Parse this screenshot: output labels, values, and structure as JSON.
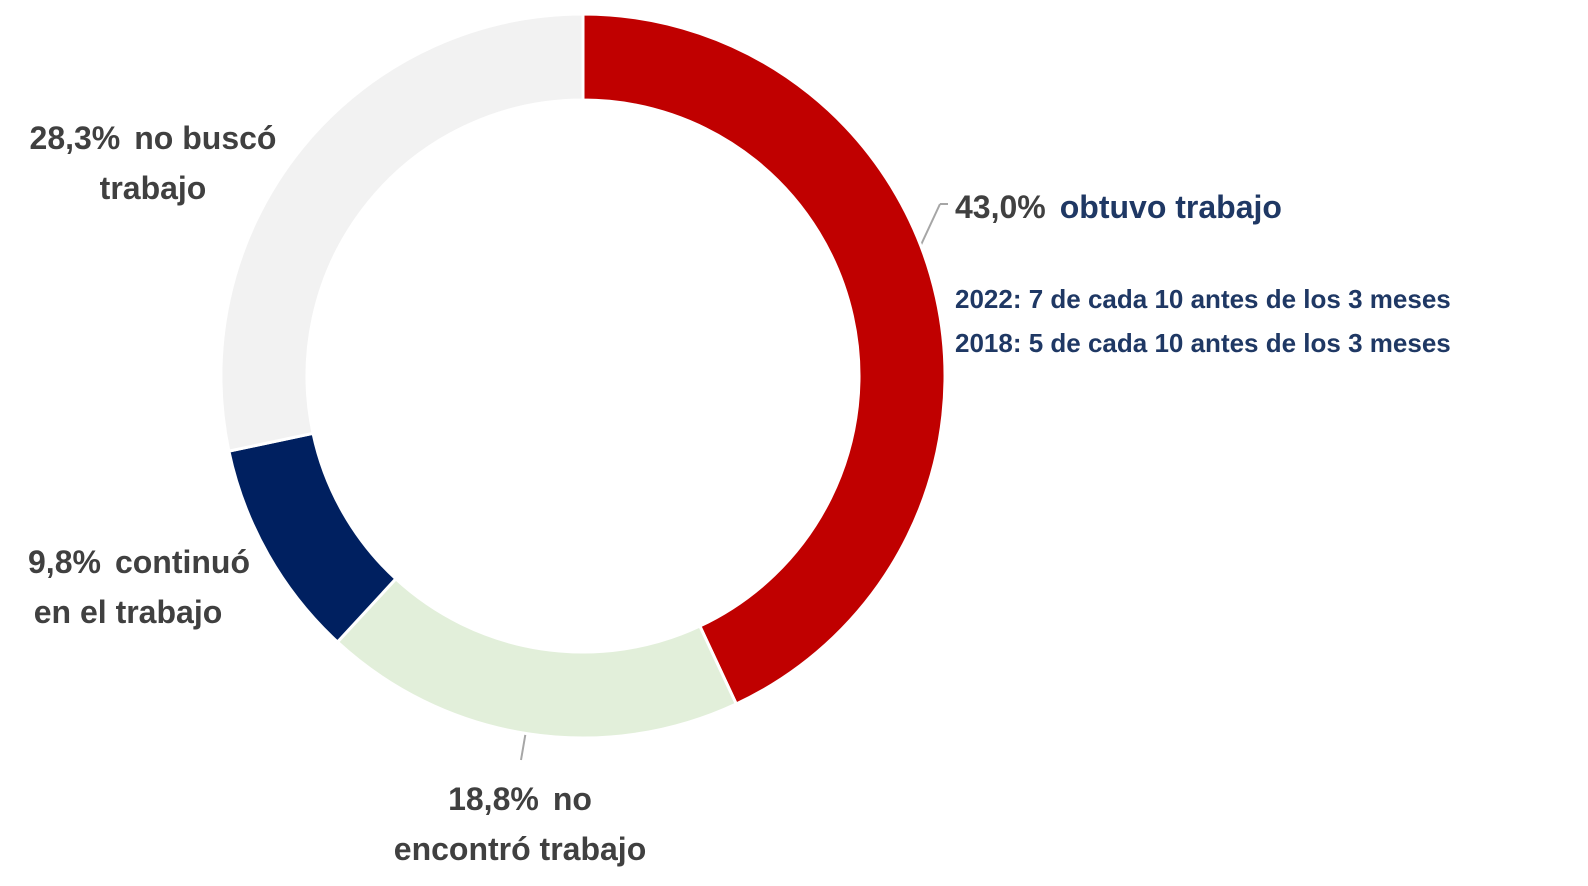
{
  "chart_data": {
    "type": "donut",
    "categories": [
      "obtuvo trabajo",
      "no encontró trabajo",
      "continuó en el trabajo",
      "no buscó trabajo"
    ],
    "values": [
      43.0,
      18.8,
      9.8,
      28.3
    ],
    "value_labels": [
      "43,0%",
      "18,8%",
      "9,8%",
      "28,3%"
    ],
    "colors": [
      "#c00000",
      "#e2efda",
      "#002060",
      "#f2f2f2"
    ],
    "annotations": [
      "2022: 7 de cada 10 antes de los 3 meses",
      "2018: 5 de cada 10 antes de los 3 meses"
    ]
  }
}
